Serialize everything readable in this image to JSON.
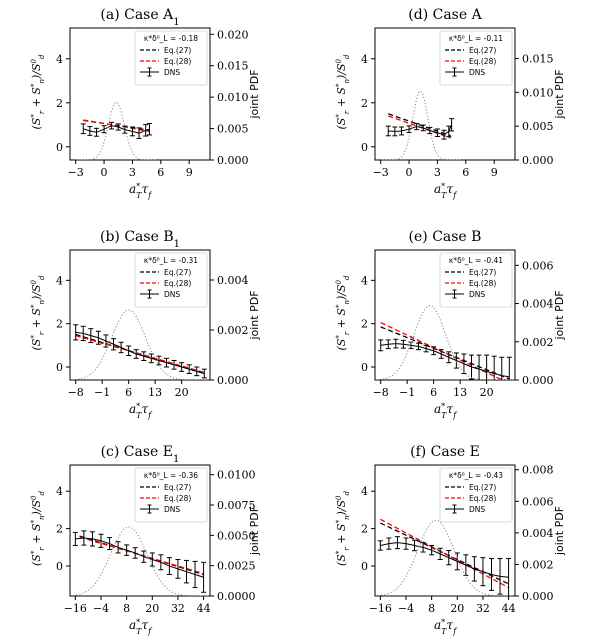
{
  "chart_data": [
    {
      "panel_title": "(a) Case A",
      "title_subscript": "1",
      "type": "line",
      "xlabel": "a*_T τ_f",
      "ylabel": "(S*_r + S*_n)/S^0_d",
      "ylabel_right": "joint PDF",
      "xticks": [
        -3,
        0,
        3,
        6,
        9
      ],
      "xlim": [
        -3.6,
        11.2
      ],
      "yticks_left": [
        0,
        2,
        4
      ],
      "ylim_left": [
        -0.6,
        5.4
      ],
      "yticks_right": [
        "0.000",
        "0.005",
        "0.010",
        "0.015",
        "0.020"
      ],
      "ylim_right": [
        0,
        0.021
      ],
      "legend": {
        "position": "top-right",
        "kappa_label": "κ*δ⁰_L = -0.18",
        "entries": [
          "Eq.(27)",
          "Eq.(28)",
          "DNS"
        ]
      },
      "series": [
        {
          "name": "Eq.(27)",
          "color": "#000000",
          "x": [
            -2.2,
            4.8
          ],
          "y": [
            1.2,
            0.75
          ]
        },
        {
          "name": "Eq.(28)",
          "color": "#ff0000",
          "x": [
            -2.2,
            4.8
          ],
          "y": [
            1.22,
            0.7
          ]
        },
        {
          "name": "DNS",
          "color": "#000000",
          "x": [
            -2.2,
            -1.5,
            -0.8,
            0,
            0.8,
            1.5,
            2.2,
            3,
            3.7,
            4.4,
            4.8
          ],
          "y": [
            0.82,
            0.72,
            0.66,
            0.8,
            0.96,
            0.9,
            0.78,
            0.7,
            0.62,
            0.75,
            0.8
          ],
          "err": [
            0.22,
            0.2,
            0.18,
            0.16,
            0.15,
            0.14,
            0.16,
            0.2,
            0.24,
            0.26,
            0.26
          ]
        },
        {
          "name": "PDF",
          "color": "#888888",
          "axis": "right",
          "pdf": {
            "mu": 1.3,
            "sigma": 0.85,
            "peak": 0.0092,
            "from": -2.8,
            "to": 5.5
          }
        }
      ]
    },
    {
      "panel_title": "(d) Case A",
      "title_subscript": "",
      "type": "line",
      "xlabel": "a*_T τ_f",
      "ylabel": "(S*_r + S*_n)/S^0_d",
      "ylabel_right": "joint PDF",
      "xticks": [
        -3,
        0,
        3,
        6,
        9
      ],
      "xlim": [
        -3.6,
        11.2
      ],
      "yticks_left": [
        0,
        2,
        4
      ],
      "ylim_left": [
        -0.6,
        5.4
      ],
      "yticks_right": [
        "0.000",
        "0.005",
        "0.010",
        "0.015"
      ],
      "ylim_right": [
        0,
        0.0195
      ],
      "legend": {
        "position": "top-right",
        "kappa_label": "κ*δ⁰_L = -0.11",
        "entries": [
          "Eq.(27)",
          "Eq.(28)",
          "DNS"
        ]
      },
      "series": [
        {
          "name": "Eq.(27)",
          "color": "#000000",
          "x": [
            -2.2,
            4.4
          ],
          "y": [
            1.5,
            0.5
          ]
        },
        {
          "name": "Eq.(28)",
          "color": "#ff0000",
          "x": [
            -2.2,
            4.4
          ],
          "y": [
            1.4,
            0.4
          ]
        },
        {
          "name": "DNS",
          "color": "#000000",
          "x": [
            -2.2,
            -1.5,
            -0.8,
            0,
            0.8,
            1.5,
            2.2,
            3,
            3.7,
            4.2,
            4.5
          ],
          "y": [
            0.72,
            0.7,
            0.72,
            0.8,
            0.92,
            0.86,
            0.74,
            0.64,
            0.55,
            0.7,
            1.0
          ],
          "err": [
            0.22,
            0.2,
            0.18,
            0.15,
            0.14,
            0.13,
            0.14,
            0.17,
            0.2,
            0.24,
            0.28
          ]
        },
        {
          "name": "PDF",
          "color": "#888888",
          "axis": "right",
          "pdf": {
            "mu": 1.2,
            "sigma": 0.8,
            "peak": 0.0102,
            "from": -2.8,
            "to": 5.5
          }
        }
      ]
    },
    {
      "panel_title": "(b) Case B",
      "title_subscript": "1",
      "type": "line",
      "xlabel": "a*_T τ_f",
      "ylabel": "(S*_r + S*_n)/S^0_d",
      "ylabel_right": "joint PDF",
      "xticks": [
        -8,
        -1,
        6,
        13,
        20
      ],
      "xlim": [
        -9.5,
        27.5
      ],
      "yticks_left": [
        0,
        2,
        4
      ],
      "ylim_left": [
        -0.6,
        5.4
      ],
      "yticks_right": [
        "0.000",
        "0.002",
        "0.004"
      ],
      "ylim_right": [
        0,
        0.0052
      ],
      "legend": {
        "position": "top-right",
        "kappa_label": "κ*δ⁰_L = -0.31",
        "entries": [
          "Eq.(27)",
          "Eq.(28)",
          "DNS"
        ]
      },
      "series": [
        {
          "name": "Eq.(27)",
          "color": "#000000",
          "x": [
            -8,
            26
          ],
          "y": [
            1.5,
            -0.3
          ]
        },
        {
          "name": "Eq.(28)",
          "color": "#ff0000",
          "x": [
            -8,
            26
          ],
          "y": [
            1.45,
            -0.25
          ]
        },
        {
          "name": "DNS",
          "color": "#000000",
          "x": [
            -8,
            -6,
            -4,
            -2,
            0,
            2,
            4,
            6,
            8,
            10,
            12,
            14,
            16,
            18,
            20,
            22,
            24,
            26
          ],
          "y": [
            1.6,
            1.55,
            1.45,
            1.35,
            1.2,
            1.05,
            0.9,
            0.75,
            0.6,
            0.5,
            0.4,
            0.3,
            0.2,
            0.1,
            0.0,
            -0.1,
            -0.2,
            -0.3
          ],
          "err": [
            0.35,
            0.33,
            0.32,
            0.3,
            0.28,
            0.26,
            0.24,
            0.22,
            0.2,
            0.2,
            0.2,
            0.2,
            0.2,
            0.2,
            0.2,
            0.2,
            0.2,
            0.2
          ]
        },
        {
          "name": "PDF",
          "color": "#888888",
          "axis": "right",
          "pdf": {
            "mu": 6,
            "sigma": 4.5,
            "peak": 0.0028,
            "from": -9,
            "to": 27
          }
        }
      ]
    },
    {
      "panel_title": "(e) Case B",
      "title_subscript": "",
      "type": "line",
      "xlabel": "a*_T τ_f",
      "ylabel": "(S*_r + S*_n)/S^0_d",
      "ylabel_right": "joint PDF",
      "xticks": [
        -8,
        -1,
        6,
        13,
        20
      ],
      "xlim": [
        -9.5,
        27.5
      ],
      "yticks_left": [
        0,
        2,
        4
      ],
      "ylim_left": [
        -0.6,
        5.4
      ],
      "yticks_right": [
        "0.000",
        "0.002",
        "0.004",
        "0.006"
      ],
      "ylim_right": [
        0,
        0.0068
      ],
      "legend": {
        "position": "top-right",
        "kappa_label": "κ*δ⁰_L = -0.41",
        "entries": [
          "Eq.(27)",
          "Eq.(28)",
          "DNS"
        ]
      },
      "series": [
        {
          "name": "Eq.(27)",
          "color": "#000000",
          "x": [
            -8,
            26
          ],
          "y": [
            1.85,
            -0.55
          ]
        },
        {
          "name": "Eq.(28)",
          "color": "#ff0000",
          "x": [
            -8,
            26
          ],
          "y": [
            2.05,
            -0.75
          ]
        },
        {
          "name": "DNS",
          "color": "#000000",
          "x": [
            -8,
            -6,
            -4,
            -2,
            0,
            2,
            4,
            6,
            8,
            10,
            12,
            14,
            16,
            18,
            20,
            22,
            24,
            26
          ],
          "y": [
            1.0,
            1.05,
            1.08,
            1.05,
            1.0,
            0.95,
            0.85,
            0.75,
            0.6,
            0.45,
            0.3,
            0.15,
            0.0,
            -0.1,
            -0.2,
            -0.3,
            -0.4,
            -0.45
          ],
          "err": [
            0.25,
            0.2,
            0.2,
            0.18,
            0.15,
            0.15,
            0.15,
            0.18,
            0.2,
            0.25,
            0.35,
            0.45,
            0.55,
            0.65,
            0.75,
            0.8,
            0.85,
            0.9
          ]
        },
        {
          "name": "PDF",
          "color": "#888888",
          "axis": "right",
          "pdf": {
            "mu": 5,
            "sigma": 4.2,
            "peak": 0.0039,
            "from": -9,
            "to": 27
          }
        }
      ]
    },
    {
      "panel_title": "(c) Case E",
      "title_subscript": "1",
      "type": "line",
      "xlabel": "a*_T τ_f",
      "ylabel": "(S*_r + S*_n)/S^0_d",
      "ylabel_right": "joint PDF",
      "xticks": [
        -16,
        -4,
        8,
        20,
        32,
        44
      ],
      "xlim": [
        -18.5,
        47
      ],
      "yticks_left": [
        0,
        2,
        4
      ],
      "ylim_left": [
        -1.6,
        5.4
      ],
      "yticks_right": [
        "0.0000",
        "0.0025",
        "0.0050",
        "0.0075",
        "0.0100"
      ],
      "ylim_right": [
        0,
        0.0108
      ],
      "legend": {
        "position": "top-right",
        "kappa_label": "κ*δ⁰_L = -0.36",
        "entries": [
          "Eq.(27)",
          "Eq.(28)",
          "DNS"
        ]
      },
      "series": [
        {
          "name": "Eq.(27)",
          "color": "#000000",
          "x": [
            -14,
            44
          ],
          "y": [
            1.6,
            -0.45
          ]
        },
        {
          "name": "Eq.(28)",
          "color": "#ff0000",
          "x": [
            -14,
            44
          ],
          "y": [
            1.55,
            -0.4
          ]
        },
        {
          "name": "DNS",
          "color": "#000000",
          "x": [
            -16,
            -12,
            -8,
            -4,
            0,
            4,
            8,
            12,
            16,
            20,
            24,
            28,
            32,
            36,
            40,
            44
          ],
          "y": [
            1.45,
            1.5,
            1.45,
            1.35,
            1.2,
            1.0,
            0.85,
            0.7,
            0.5,
            0.35,
            0.2,
            0.0,
            -0.15,
            -0.3,
            -0.45,
            -0.6
          ],
          "err": [
            0.35,
            0.38,
            0.38,
            0.35,
            0.32,
            0.3,
            0.28,
            0.28,
            0.3,
            0.35,
            0.4,
            0.45,
            0.5,
            0.6,
            0.7,
            0.8
          ]
        },
        {
          "name": "PDF",
          "color": "#888888",
          "axis": "right",
          "pdf": {
            "mu": 9,
            "sigma": 8.5,
            "peak": 0.0057,
            "from": -17,
            "to": 46
          }
        }
      ]
    },
    {
      "panel_title": "(f) Case E",
      "title_subscript": "",
      "type": "line",
      "xlabel": "a*_T τ_f",
      "ylabel": "(S*_r + S*_n)/S^0_d",
      "ylabel_right": "joint PDF",
      "xticks": [
        -16,
        -4,
        8,
        20,
        32,
        44
      ],
      "xlim": [
        -18.5,
        47
      ],
      "yticks_left": [
        0,
        2,
        4
      ],
      "ylim_left": [
        -1.6,
        5.4
      ],
      "yticks_right": [
        "0.000",
        "0.002",
        "0.004",
        "0.006",
        "0.008"
      ],
      "ylim_right": [
        0,
        0.0083
      ],
      "legend": {
        "position": "top-right",
        "kappa_label": "κ*δ⁰_L = -0.43",
        "entries": [
          "Eq.(27)",
          "Eq.(28)",
          "DNS"
        ]
      },
      "series": [
        {
          "name": "Eq.(27)",
          "color": "#000000",
          "x": [
            -16,
            44
          ],
          "y": [
            2.3,
            -0.95
          ]
        },
        {
          "name": "Eq.(28)",
          "color": "#ff0000",
          "x": [
            -16,
            44
          ],
          "y": [
            2.5,
            -1.15
          ]
        },
        {
          "name": "DNS",
          "color": "#000000",
          "x": [
            -16,
            -12,
            -8,
            -4,
            0,
            4,
            8,
            12,
            16,
            20,
            24,
            28,
            32,
            36,
            40,
            44
          ],
          "y": [
            1.1,
            1.2,
            1.25,
            1.2,
            1.1,
            1.0,
            0.85,
            0.65,
            0.45,
            0.25,
            0.05,
            -0.15,
            -0.3,
            -0.45,
            -0.55,
            -0.6
          ],
          "err": [
            0.25,
            0.3,
            0.32,
            0.3,
            0.28,
            0.25,
            0.25,
            0.3,
            0.38,
            0.45,
            0.55,
            0.65,
            0.75,
            0.85,
            0.95,
            1.0
          ]
        },
        {
          "name": "PDF",
          "color": "#888888",
          "axis": "right",
          "pdf": {
            "mu": 10,
            "sigma": 8.5,
            "peak": 0.0048,
            "from": -17,
            "to": 46
          }
        }
      ]
    }
  ]
}
